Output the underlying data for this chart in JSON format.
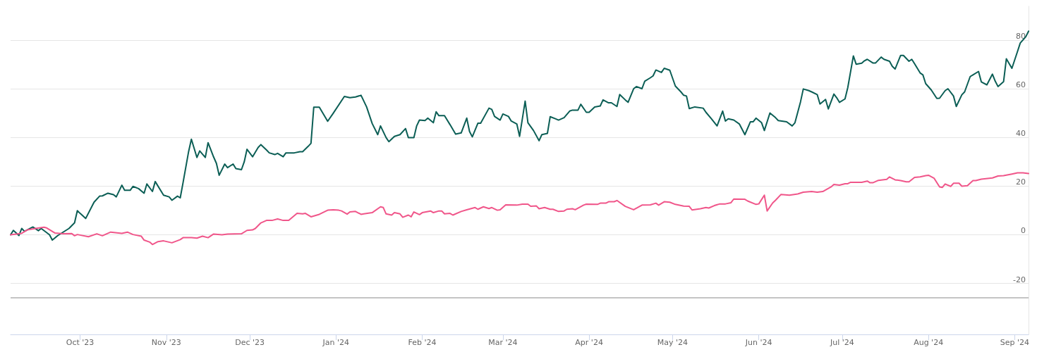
{
  "chart_data": {
    "type": "line",
    "xlim": [
      "2023-09-06",
      "2024-09-06"
    ],
    "ylim": [
      -41,
      94
    ],
    "yticks": [
      -20,
      0,
      20,
      40,
      60,
      80
    ],
    "xticks": [
      {
        "value": "2023-10-01",
        "label": "Oct '23"
      },
      {
        "value": "2023-11-01",
        "label": "Nov '23"
      },
      {
        "value": "2023-12-01",
        "label": "Dec '23"
      },
      {
        "value": "2024-01-01",
        "label": "Jan '24"
      },
      {
        "value": "2024-02-01",
        "label": "Feb '24"
      },
      {
        "value": "2024-03-01",
        "label": "Mar '24"
      },
      {
        "value": "2024-04-01",
        "label": "Apr '24"
      },
      {
        "value": "2024-05-01",
        "label": "May '24"
      },
      {
        "value": "2024-06-01",
        "label": "Jun '24"
      },
      {
        "value": "2024-07-01",
        "label": "Jul '24"
      },
      {
        "value": "2024-08-01",
        "label": "Aug '24"
      },
      {
        "value": "2024-09-01",
        "label": "Sep '24"
      }
    ],
    "grid": "y",
    "marker": "none",
    "line_style": "solid",
    "ref_lines": [
      {
        "axis": "y",
        "value": -26,
        "color": "#c4c4c4"
      }
    ],
    "series": [
      {
        "color": "#0b5e55",
        "x": [
          "2023-09-06",
          "2023-09-07",
          "2023-09-09",
          "2023-09-10",
          "2023-09-11",
          "2023-09-14",
          "2023-09-16",
          "2023-09-17",
          "2023-09-20",
          "2023-09-21",
          "2023-09-23",
          "2023-09-27",
          "2023-09-29",
          "2023-09-30",
          "2023-10-01",
          "2023-10-03",
          "2023-10-06",
          "2023-10-08",
          "2023-10-09",
          "2023-10-11",
          "2023-10-13",
          "2023-10-14",
          "2023-10-16",
          "2023-10-17",
          "2023-10-19",
          "2023-10-20",
          "2023-10-22",
          "2023-10-24",
          "2023-10-25",
          "2023-10-27",
          "2023-10-28",
          "2023-10-31",
          "2023-11-02",
          "2023-11-03",
          "2023-11-05",
          "2023-11-06",
          "2023-11-07",
          "2023-11-09",
          "2023-11-10",
          "2023-11-12",
          "2023-11-13",
          "2023-11-15",
          "2023-11-16",
          "2023-11-18",
          "2023-11-19",
          "2023-11-20",
          "2023-11-22",
          "2023-11-23",
          "2023-11-25",
          "2023-11-26",
          "2023-11-28",
          "2023-11-29",
          "2023-11-30",
          "2023-12-02",
          "2023-12-04",
          "2023-12-05",
          "2023-12-07",
          "2023-12-08",
          "2023-12-10",
          "2023-12-11",
          "2023-12-13",
          "2023-12-14",
          "2023-12-17",
          "2023-12-19",
          "2023-12-20",
          "2023-12-22",
          "2023-12-23",
          "2023-12-24",
          "2023-12-26",
          "2023-12-29",
          "2023-12-31",
          "2024-01-04",
          "2024-01-06",
          "2024-01-08",
          "2024-01-10",
          "2024-01-12",
          "2024-01-14",
          "2024-01-16",
          "2024-01-17",
          "2024-01-19",
          "2024-01-20",
          "2024-01-22",
          "2024-01-24",
          "2024-01-26",
          "2024-01-27",
          "2024-01-29",
          "2024-01-30",
          "2024-01-31",
          "2024-02-02",
          "2024-02-03",
          "2024-02-05",
          "2024-02-06",
          "2024-02-07",
          "2024-02-09",
          "2024-02-11",
          "2024-02-13",
          "2024-02-15",
          "2024-02-17",
          "2024-02-18",
          "2024-02-19",
          "2024-02-21",
          "2024-02-22",
          "2024-02-25",
          "2024-02-26",
          "2024-02-27",
          "2024-02-29",
          "2024-03-01",
          "2024-03-03",
          "2024-03-04",
          "2024-03-06",
          "2024-03-07",
          "2024-03-09",
          "2024-03-10",
          "2024-03-12",
          "2024-03-14",
          "2024-03-15",
          "2024-03-17",
          "2024-03-18",
          "2024-03-20",
          "2024-03-21",
          "2024-03-23",
          "2024-03-25",
          "2024-03-26",
          "2024-03-28",
          "2024-03-29",
          "2024-03-31",
          "2024-04-01",
          "2024-04-03",
          "2024-04-05",
          "2024-04-06",
          "2024-04-08",
          "2024-04-09",
          "2024-04-11",
          "2024-04-12",
          "2024-04-14",
          "2024-04-15",
          "2024-04-17",
          "2024-04-18",
          "2024-04-20",
          "2024-04-21",
          "2024-04-23",
          "2024-04-24",
          "2024-04-25",
          "2024-04-27",
          "2024-04-28",
          "2024-04-30",
          "2024-05-02",
          "2024-05-04",
          "2024-05-05",
          "2024-05-06",
          "2024-05-07",
          "2024-05-09",
          "2024-05-12",
          "2024-05-13",
          "2024-05-15",
          "2024-05-17",
          "2024-05-19",
          "2024-05-20",
          "2024-05-21",
          "2024-05-23",
          "2024-05-25",
          "2024-05-27",
          "2024-05-29",
          "2024-05-30",
          "2024-05-31",
          "2024-06-02",
          "2024-06-03",
          "2024-06-05",
          "2024-06-07",
          "2024-06-08",
          "2024-06-11",
          "2024-06-13",
          "2024-06-14",
          "2024-06-16",
          "2024-06-17",
          "2024-06-19",
          "2024-06-20",
          "2024-06-22",
          "2024-06-23",
          "2024-06-25",
          "2024-06-26",
          "2024-06-28",
          "2024-06-29",
          "2024-06-30",
          "2024-07-02",
          "2024-07-03",
          "2024-07-05",
          "2024-07-06",
          "2024-07-08",
          "2024-07-09",
          "2024-07-10",
          "2024-07-12",
          "2024-07-13",
          "2024-07-15",
          "2024-07-16",
          "2024-07-18",
          "2024-07-19",
          "2024-07-20",
          "2024-07-22",
          "2024-07-23",
          "2024-07-25",
          "2024-07-26",
          "2024-07-27",
          "2024-07-29",
          "2024-07-30",
          "2024-07-31",
          "2024-08-02",
          "2024-08-04",
          "2024-08-05",
          "2024-08-07",
          "2024-08-08",
          "2024-08-10",
          "2024-08-11",
          "2024-08-13",
          "2024-08-14",
          "2024-08-16",
          "2024-08-17",
          "2024-08-19",
          "2024-08-20",
          "2024-08-22",
          "2024-08-24",
          "2024-08-25",
          "2024-08-26",
          "2024-08-28",
          "2024-08-29",
          "2024-08-31",
          "2024-09-02",
          "2024-09-03",
          "2024-09-05",
          "2024-09-06"
        ],
        "values": [
          0,
          1.8,
          -0.3,
          2.6,
          1.4,
          3.2,
          1.7,
          2.6,
          0,
          -2.2,
          -0.3,
          2.6,
          4.9,
          9.9,
          8.8,
          6.7,
          13.4,
          15.9,
          16,
          17.1,
          16.5,
          15.6,
          20.4,
          18.3,
          18.3,
          19.9,
          19,
          17.1,
          20.9,
          17.8,
          21.9,
          16.3,
          15.6,
          14.2,
          15.9,
          15.2,
          21.4,
          34.2,
          39.3,
          31.8,
          34.5,
          31.8,
          37.9,
          32,
          29.4,
          24.5,
          29.1,
          27.6,
          29.1,
          27.2,
          26.8,
          30,
          35.2,
          32.1,
          35.9,
          37.1,
          34.9,
          33.7,
          33,
          33.5,
          32.1,
          33.7,
          33.7,
          34.2,
          34.2,
          36.4,
          37.6,
          52.5,
          52.5,
          46.7,
          50,
          56.9,
          56.4,
          56.7,
          57.4,
          52.6,
          45.8,
          41.2,
          44.8,
          40,
          38.3,
          40.5,
          41.2,
          43.7,
          40,
          40,
          44.8,
          47.2,
          47,
          48,
          46.1,
          50.6,
          49,
          49,
          45.3,
          41.4,
          41.9,
          48,
          42.5,
          40.3,
          45.9,
          45.9,
          52.1,
          51.6,
          48.7,
          47.2,
          49.7,
          48.7,
          46.8,
          45.6,
          40.5,
          55,
          46.1,
          42.9,
          38.7,
          41.2,
          41.7,
          48.6,
          47.7,
          47.2,
          48.2,
          50.9,
          51.3,
          51.3,
          53.7,
          50.4,
          50.4,
          52.6,
          53,
          55.5,
          54.3,
          54.3,
          52.8,
          57.7,
          55.5,
          54.5,
          60.1,
          61,
          60.1,
          63.2,
          64.6,
          65.4,
          67.8,
          66.8,
          68.5,
          67.7,
          61.2,
          58.8,
          57.4,
          57.1,
          51.9,
          52.6,
          52.1,
          50.4,
          47.7,
          44.8,
          50.9,
          46.8,
          47.7,
          47.2,
          45.6,
          41.2,
          46.5,
          46.5,
          48,
          46.1,
          42.9,
          50.1,
          48.2,
          47,
          46.5,
          44.8,
          46.1,
          54.7,
          60,
          59.3,
          58.8,
          57.7,
          53.8,
          55.7,
          51.8,
          57.9,
          56.4,
          54.5,
          55.9,
          60.6,
          73.6,
          70.2,
          70.6,
          71.6,
          72.2,
          70.7,
          70.7,
          73.1,
          72.2,
          71.4,
          69.3,
          68.2,
          73.8,
          73.8,
          71.4,
          72.2,
          70.4,
          66.6,
          65.8,
          62.2,
          59.6,
          56.1,
          56.2,
          59.3,
          60.1,
          57.1,
          52.8,
          57.6,
          58.8,
          65.1,
          65.8,
          67.2,
          62.9,
          61.7,
          66.1,
          63.2,
          61,
          63,
          72.4,
          68.5,
          75.4,
          78.9,
          81.5,
          83.8
        ]
      },
      {
        "color": "#f0568a",
        "x": [
          "2023-09-06",
          "2023-09-10",
          "2023-09-12",
          "2023-09-15",
          "2023-09-18",
          "2023-09-19",
          "2023-09-22",
          "2023-09-25",
          "2023-09-28",
          "2023-09-29",
          "2023-09-30",
          "2023-10-04",
          "2023-10-07",
          "2023-10-09",
          "2023-10-12",
          "2023-10-16",
          "2023-10-18",
          "2023-10-20",
          "2023-10-23",
          "2023-10-24",
          "2023-10-26",
          "2023-10-27",
          "2023-10-29",
          "2023-10-31",
          "2023-11-03",
          "2023-11-06",
          "2023-11-07",
          "2023-11-10",
          "2023-11-12",
          "2023-11-14",
          "2023-11-16",
          "2023-11-18",
          "2023-11-21",
          "2023-11-23",
          "2023-11-28",
          "2023-11-30",
          "2023-12-02",
          "2023-12-03",
          "2023-12-05",
          "2023-12-07",
          "2023-12-09",
          "2023-12-11",
          "2023-12-13",
          "2023-12-15",
          "2023-12-18",
          "2023-12-20",
          "2023-12-21",
          "2023-12-23",
          "2023-12-26",
          "2023-12-29",
          "2023-12-31",
          "2024-01-02",
          "2024-01-03",
          "2024-01-05",
          "2024-01-06",
          "2024-01-08",
          "2024-01-10",
          "2024-01-11",
          "2024-01-14",
          "2024-01-17",
          "2024-01-18",
          "2024-01-19",
          "2024-01-21",
          "2024-01-22",
          "2024-01-24",
          "2024-01-25",
          "2024-01-27",
          "2024-01-28",
          "2024-01-29",
          "2024-01-31",
          "2024-02-01",
          "2024-02-04",
          "2024-02-05",
          "2024-02-07",
          "2024-02-08",
          "2024-02-09",
          "2024-02-11",
          "2024-02-12",
          "2024-02-15",
          "2024-02-17",
          "2024-02-20",
          "2024-02-21",
          "2024-02-23",
          "2024-02-25",
          "2024-02-26",
          "2024-02-28",
          "2024-02-29",
          "2024-03-02",
          "2024-03-06",
          "2024-03-08",
          "2024-03-10",
          "2024-03-11",
          "2024-03-13",
          "2024-03-14",
          "2024-03-16",
          "2024-03-18",
          "2024-03-19",
          "2024-03-21",
          "2024-03-23",
          "2024-03-24",
          "2024-03-26",
          "2024-03-27",
          "2024-03-30",
          "2024-03-31",
          "2024-04-04",
          "2024-04-05",
          "2024-04-07",
          "2024-04-08",
          "2024-04-10",
          "2024-04-11",
          "2024-04-14",
          "2024-04-17",
          "2024-04-20",
          "2024-04-23",
          "2024-04-25",
          "2024-04-26",
          "2024-04-28",
          "2024-04-30",
          "2024-05-02",
          "2024-05-05",
          "2024-05-07",
          "2024-05-08",
          "2024-05-11",
          "2024-05-13",
          "2024-05-14",
          "2024-05-16",
          "2024-05-18",
          "2024-05-20",
          "2024-05-22",
          "2024-05-23",
          "2024-05-27",
          "2024-05-28",
          "2024-05-31",
          "2024-06-01",
          "2024-06-03",
          "2024-06-04",
          "2024-06-06",
          "2024-06-07",
          "2024-06-09",
          "2024-06-12",
          "2024-06-15",
          "2024-06-17",
          "2024-06-20",
          "2024-06-22",
          "2024-06-24",
          "2024-06-27",
          "2024-06-28",
          "2024-06-30",
          "2024-07-02",
          "2024-07-03",
          "2024-07-04",
          "2024-07-08",
          "2024-07-10",
          "2024-07-11",
          "2024-07-12",
          "2024-07-14",
          "2024-07-17",
          "2024-07-18",
          "2024-07-20",
          "2024-07-22",
          "2024-07-24",
          "2024-07-25",
          "2024-07-27",
          "2024-07-29",
          "2024-07-31",
          "2024-08-01",
          "2024-08-03",
          "2024-08-05",
          "2024-08-06",
          "2024-08-07",
          "2024-08-09",
          "2024-08-10",
          "2024-08-12",
          "2024-08-13",
          "2024-08-15",
          "2024-08-17",
          "2024-08-18",
          "2024-08-20",
          "2024-08-24",
          "2024-08-26",
          "2024-08-28",
          "2024-08-31",
          "2024-09-02",
          "2024-09-04",
          "2024-09-06"
        ],
        "values": [
          0,
          0.6,
          2,
          2.6,
          3.1,
          2.8,
          0.7,
          0.4,
          0.5,
          -0.4,
          0.1,
          -0.8,
          0.4,
          -0.4,
          1.1,
          0.6,
          1.1,
          0.1,
          -0.6,
          -2.2,
          -3,
          -4,
          -2.8,
          -2.5,
          -3.3,
          -2,
          -1.2,
          -1.2,
          -1.4,
          -0.6,
          -1.2,
          0.3,
          0,
          0.3,
          0.4,
          1.8,
          2,
          2.6,
          4.9,
          5.9,
          5.9,
          6.5,
          5.9,
          5.9,
          8.8,
          8.6,
          8.8,
          7.4,
          8.4,
          10.1,
          10.3,
          10.1,
          9.8,
          8.5,
          9.4,
          9.6,
          8.4,
          8.6,
          9.1,
          11.5,
          11.2,
          8.6,
          8.1,
          9.1,
          8.6,
          7.2,
          8.1,
          7.4,
          9.4,
          8.3,
          9.1,
          9.8,
          9.1,
          9.8,
          9.8,
          8.6,
          8.8,
          8.1,
          9.6,
          10.3,
          11.2,
          10.5,
          11.5,
          10.8,
          11.2,
          10.1,
          10.3,
          12.3,
          12.2,
          12.6,
          12.6,
          11.7,
          11.9,
          10.7,
          11.2,
          10.5,
          10.5,
          9.6,
          9.8,
          10.5,
          10.7,
          10.3,
          12.2,
          12.6,
          12.5,
          13,
          13,
          13.6,
          13.6,
          14.1,
          11.7,
          10.3,
          12.2,
          12.3,
          13,
          12.2,
          13.6,
          13.4,
          12.5,
          11.8,
          11.7,
          10.2,
          10.7,
          11.2,
          11,
          12,
          12.7,
          12.7,
          13.2,
          14.7,
          14.6,
          13.9,
          12.5,
          12.7,
          16.3,
          9.8,
          13.1,
          14.2,
          16.6,
          16.3,
          16.8,
          17.5,
          17.8,
          17.5,
          17.8,
          19.7,
          20.7,
          20.4,
          21,
          21,
          21.6,
          21.6,
          22.1,
          21.4,
          21.4,
          22.4,
          22.8,
          23.8,
          22.6,
          22.3,
          21.8,
          21.8,
          23.6,
          23.8,
          24.3,
          24.5,
          23.3,
          19.7,
          19.5,
          20.9,
          19.9,
          21.2,
          21.2,
          20,
          20.2,
          22.3,
          22.3,
          22.9,
          23.4,
          24.2,
          24.3,
          25,
          25.5,
          25.5,
          25.2
        ]
      }
    ]
  }
}
